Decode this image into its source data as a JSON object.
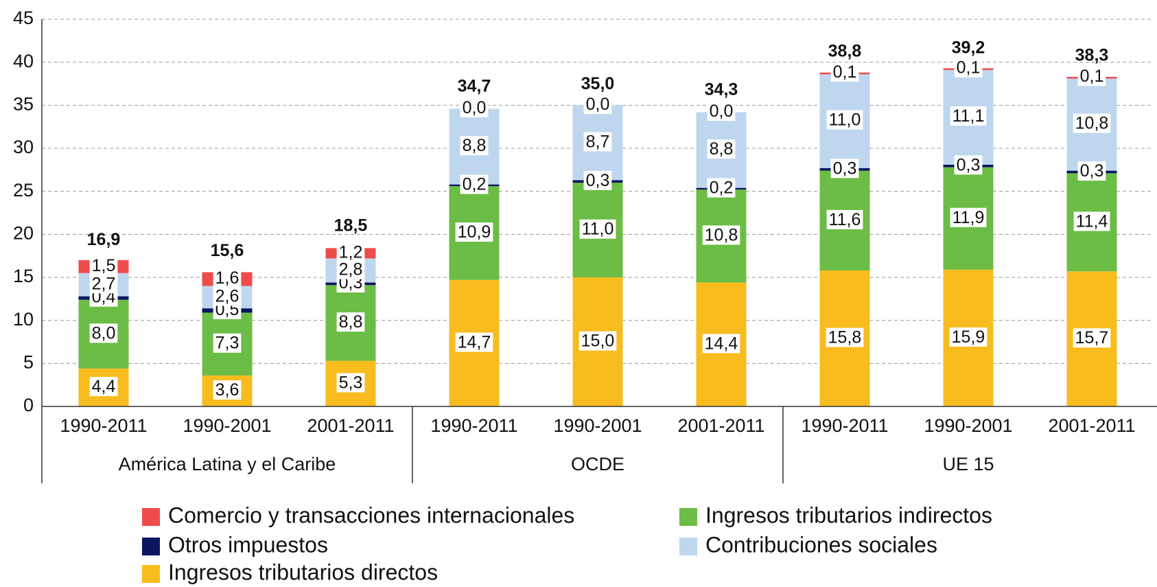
{
  "chart_data": {
    "type": "stacked_bar",
    "categories": [
      "1990-2011",
      "1990-2001",
      "2001-2011",
      "1990-2011",
      "1990-2001",
      "2001-2011",
      "1990-2011",
      "1990-2001",
      "2001-2011"
    ],
    "groups": [
      "América Latina y el Caribe",
      "OCDE",
      "UE 15"
    ],
    "series": [
      {
        "name": "Ingresos tributarios directos",
        "color": "#f9bc1f",
        "values": [
          4.4,
          3.6,
          5.3,
          14.7,
          15.0,
          14.4,
          15.8,
          15.9,
          15.7
        ],
        "value_labels": [
          "4,4",
          "3,6",
          "5,3",
          "14,7",
          "15,0",
          "14,4",
          "15,8",
          "15,9",
          "15,7"
        ]
      },
      {
        "name": "Ingresos tributarios indirectos",
        "color": "#6cbd45",
        "values": [
          8.0,
          7.3,
          8.8,
          10.9,
          11.0,
          10.8,
          11.6,
          11.9,
          11.4
        ],
        "value_labels": [
          "8,0",
          "7,3",
          "8,8",
          "10,9",
          "11,0",
          "10,8",
          "11,6",
          "11,9",
          "11,4"
        ]
      },
      {
        "name": "Otros impuestos",
        "color": "#0b1560",
        "values": [
          0.4,
          0.5,
          0.3,
          0.2,
          0.3,
          0.2,
          0.3,
          0.3,
          0.3
        ],
        "value_labels": [
          "0,4",
          "0,5",
          "0,3",
          "0,2",
          "0,3",
          "0,2",
          "0,3",
          "0,3",
          "0,3"
        ]
      },
      {
        "name": "Contribuciones sociales",
        "color": "#bfd7ee",
        "values": [
          2.7,
          2.6,
          2.8,
          8.8,
          8.7,
          8.8,
          11.0,
          11.1,
          10.8
        ],
        "value_labels": [
          "2,7",
          "2,6",
          "2,8",
          "8,8",
          "8,7",
          "8,8",
          "11,0",
          "11,1",
          "10,8"
        ]
      },
      {
        "name": "Comercio y transacciones internacionales",
        "color": "#ef4b4b",
        "values": [
          1.5,
          1.6,
          1.2,
          0.0,
          0.0,
          0.0,
          0.1,
          0.1,
          0.1
        ],
        "value_labels": [
          "1,5",
          "1,6",
          "1,2",
          "0,0",
          "0,0",
          "0,0",
          "0,1",
          "0,1",
          "0,1"
        ]
      }
    ],
    "totals": [
      16.9,
      15.6,
      18.5,
      34.7,
      35.0,
      34.3,
      38.8,
      39.2,
      38.3
    ],
    "total_labels": [
      "16,9",
      "15,6",
      "18,5",
      "34,7",
      "35,0",
      "34,3",
      "38,8",
      "39,2",
      "38,3"
    ],
    "ylim": [
      0,
      45
    ],
    "yticks": [
      0,
      5,
      10,
      15,
      20,
      25,
      30,
      35,
      40,
      45
    ],
    "grid": true
  }
}
